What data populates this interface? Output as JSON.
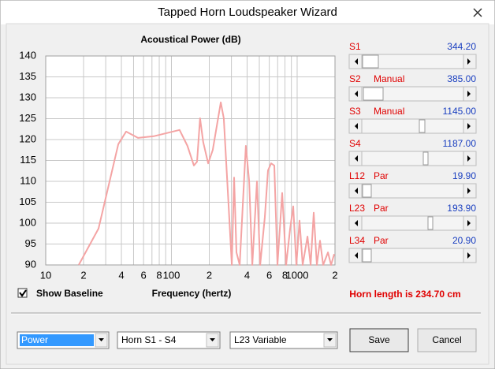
{
  "window": {
    "title": "Tapped Horn Loudspeaker Wizard"
  },
  "chart_data": {
    "type": "line",
    "title": "Acoustical Power (dB)",
    "x_label": "Frequency (hertz)",
    "x_scale": "log",
    "grid": true,
    "x": [
      18.3,
      26.3,
      37.8,
      43.6,
      54.2,
      72.3,
      116,
      134,
      151,
      160,
      169,
      179,
      196,
      213,
      247,
      261,
      285,
      302,
      315,
      329,
      349,
      391,
      415,
      440,
      479,
      508,
      553,
      586,
      621,
      658,
      697,
      760,
      817,
      879,
      931,
      986,
      1045,
      1107,
      1208,
      1280,
      1355,
      1435,
      1520,
      1611,
      1758,
      1862,
      1972
    ],
    "series": [
      {
        "color": "#f4a4a4",
        "values": [
          90,
          98.7,
          118.9,
          121.9,
          120.4,
          120.8,
          122.3,
          118.5,
          113.8,
          114.7,
          125.1,
          119.4,
          114.3,
          117.5,
          128.9,
          125.1,
          104.3,
          90,
          110.9,
          93,
          90,
          118.5,
          110,
          90,
          110,
          90,
          101.5,
          112.6,
          114.3,
          113.8,
          90,
          107.2,
          90,
          98.7,
          104,
          90,
          100.6,
          90,
          96.8,
          90,
          102.5,
          90,
          95.8,
          90,
          93,
          90,
          92.6
        ]
      }
    ],
    "xlim": [
      10,
      2000
    ],
    "ylim": [
      90,
      140
    ],
    "xticks": [
      10,
      {
        "value": 20,
        "label": "2"
      },
      {
        "value": 40,
        "label": "4"
      },
      {
        "value": 60,
        "label": "6"
      },
      {
        "value": 80,
        "label": "8"
      },
      100,
      {
        "value": 200,
        "label": "2"
      },
      {
        "value": 400,
        "label": "4"
      },
      {
        "value": 600,
        "label": "6"
      },
      {
        "value": 800,
        "label": "8"
      },
      1000,
      {
        "value": 2000,
        "label": "2"
      }
    ],
    "x_minor_ticks": [
      30,
      50,
      70,
      90,
      300,
      500,
      700,
      900
    ],
    "yticks": [
      90,
      95,
      100,
      105,
      110,
      115,
      120,
      125,
      130,
      135,
      140
    ]
  },
  "sliders": [
    {
      "label": "S1",
      "value": "344.20"
    },
    {
      "label": "S2",
      "mode": "Manual",
      "value": "385.00"
    },
    {
      "label": "S3",
      "mode": "Manual",
      "value": "1145.00"
    },
    {
      "label": "S4",
      "value": "1187.00"
    },
    {
      "label": "L12",
      "mode": "Par",
      "value": "19.90"
    },
    {
      "label": "L23",
      "mode": "Par",
      "value": "193.90"
    },
    {
      "label": "L34",
      "mode": "Par",
      "value": "20.90"
    }
  ],
  "options": {
    "show_baseline": {
      "label": "Show Baseline",
      "checked": true
    }
  },
  "status": "Horn length is 234.70 cm",
  "dropdowns": [
    "Power",
    "Horn S1 - S4",
    "L23 Variable"
  ],
  "buttons": [
    "Save",
    "Cancel"
  ]
}
